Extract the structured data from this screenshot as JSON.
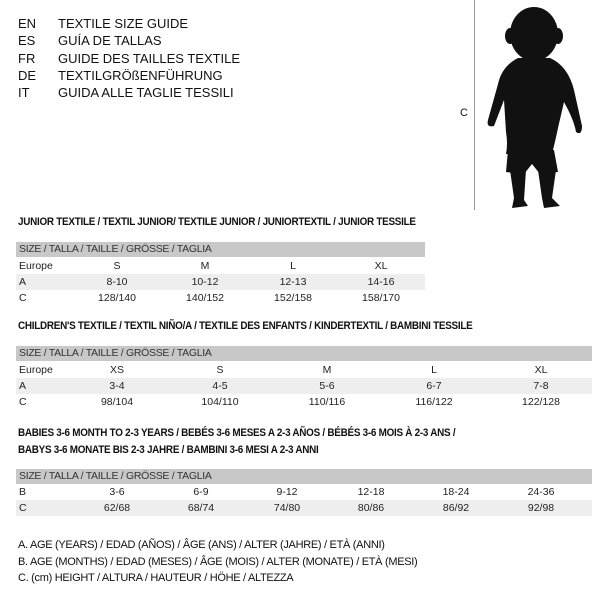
{
  "languages": [
    {
      "code": "EN",
      "name": "TEXTILE SIZE GUIDE"
    },
    {
      "code": "ES",
      "name": "GUÍA DE TALLAS"
    },
    {
      "code": "FR",
      "name": "GUIDE DES TAILLES TEXTILE"
    },
    {
      "code": "DE",
      "name": "TEXTILGRÖßENFÜHRUNG"
    },
    {
      "code": "IT",
      "name": "GUIDA ALLE TAGLIE TESSILI"
    }
  ],
  "figure": {
    "label": "C",
    "icon": "child-silhouette"
  },
  "colors": {
    "header_bg": "#c8c8c8",
    "row_shade": "#eeeeee"
  },
  "size_header": "SIZE / TALLA / TAILLE / GRÖSSE / TAGLIA",
  "junior": {
    "title": "JUNIOR TEXTILE / TEXTIL JUNIOR/ TEXTILE JUNIOR / JUNIORTEXTIL / JUNIOR TESSILE",
    "rows": [
      {
        "label": "Europe",
        "values": [
          "S",
          "M",
          "L",
          "XL"
        ]
      },
      {
        "label": "A",
        "values": [
          "8-10",
          "10-12",
          "12-13",
          "14-16"
        ]
      },
      {
        "label": "C",
        "values": [
          "128/140",
          "140/152",
          "152/158",
          "158/170"
        ]
      }
    ]
  },
  "children": {
    "title": "CHILDREN'S TEXTILE / TEXTIL NIÑO/A / TEXTILE DES ENFANTS / KINDERTEXTIL / BAMBINI TESSILE",
    "rows": [
      {
        "label": "Europe",
        "values": [
          "XS",
          "S",
          "M",
          "L",
          "XL"
        ]
      },
      {
        "label": "A",
        "values": [
          "3-4",
          "4-5",
          "5-6",
          "6-7",
          "7-8"
        ]
      },
      {
        "label": "C",
        "values": [
          "98/104",
          "104/110",
          "110/116",
          "116/122",
          "122/128"
        ]
      }
    ]
  },
  "babies": {
    "title_line1": "BABIES 3-6 MONTH TO 2-3 YEARS / BEBÉS 3-6 MESES A 2-3 AÑOS / BÉBÉS 3-6 MOIS À 2-3 ANS /",
    "title_line2": "BABYS 3-6 MONATE BIS 2-3 JAHRE / BAMBINI 3-6 MESI A 2-3 ANNI",
    "rows": [
      {
        "label": "B",
        "values": [
          "3-6",
          "6-9",
          "9-12",
          "12-18",
          "18-24",
          "24-36"
        ]
      },
      {
        "label": "C",
        "values": [
          "62/68",
          "68/74",
          "74/80",
          "80/86",
          "86/92",
          "92/98"
        ]
      }
    ]
  },
  "legend": [
    "A. AGE (YEARS) / EDAD (AÑOS) / ÂGE (ANS) / ALTER (JAHRE) / ETÀ (ANNI)",
    "B. AGE (MONTHS) / EDAD (MESES) / ÂGE (MOIS) / ALTER (MONATE) / ETÀ (MESI)",
    "C. (cm) HEIGHT / ALTURA / HAUTEUR / HÖHE / ALTEZZA"
  ]
}
